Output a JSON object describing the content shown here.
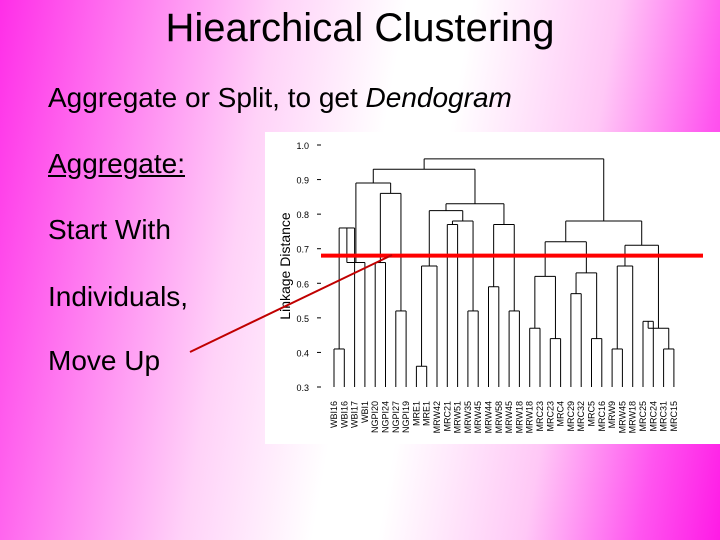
{
  "slide": {
    "title": "Hiearchical Clustering",
    "subtitle_plain": "Aggregate or Split, to get ",
    "subtitle_em": "Dendogram",
    "bullets": [
      "Aggregate:",
      "Start With",
      "Individuals,",
      "Move Up"
    ]
  },
  "chart_data": {
    "type": "dendrogram",
    "ylabel": "Linkage Distance",
    "ylim": [
      0.3,
      1.0
    ],
    "yticks": [
      "0.3",
      "0.4",
      "0.5",
      "0.6",
      "0.7",
      "0.8",
      "0.9",
      "1.0"
    ],
    "leaves": [
      "WBI16",
      "WBI16",
      "WBI17",
      "WBI1",
      "NGPI20",
      "NGPI24",
      "NGPI27",
      "NGPI19",
      "MRE1",
      "MRE1",
      "MRW42",
      "MRC21",
      "MRW51",
      "MRW35",
      "MRW45",
      "MRW44",
      "MRW58",
      "MRW45",
      "MRW18",
      "MRW18",
      "MRC23",
      "MRC23",
      "MRC4",
      "MRC29",
      "MRC32",
      "MRC5",
      "MRC16",
      "MRW9",
      "MRW45",
      "MRW18",
      "MRC25",
      "MRC24",
      "MRC31",
      "MRC15"
    ],
    "cut_height": 0.68,
    "colors": {
      "cut_line": "#ff0000",
      "tree": "#000000",
      "pointer": "#c00000"
    }
  }
}
